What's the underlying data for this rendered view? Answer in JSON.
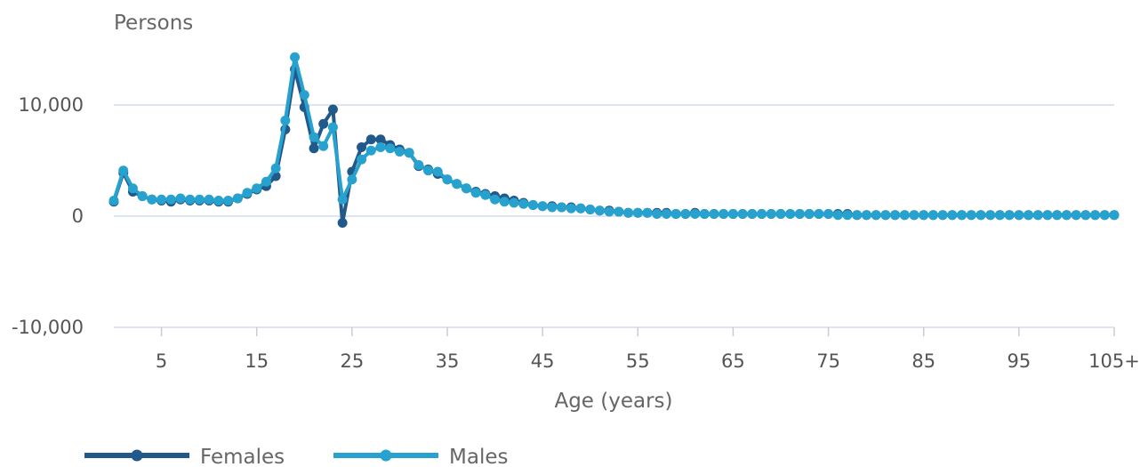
{
  "chart_data": {
    "type": "line",
    "ylabel": "Persons",
    "xlabel": "Age (years)",
    "ylim": [
      -10000,
      15000
    ],
    "yticks": [
      {
        "value": 10000,
        "label": "10,000"
      },
      {
        "value": 0,
        "label": "0"
      },
      {
        "value": -10000,
        "label": "-10,000"
      }
    ],
    "xticks": [
      {
        "value": 5,
        "label": "5"
      },
      {
        "value": 15,
        "label": "15"
      },
      {
        "value": 25,
        "label": "25"
      },
      {
        "value": 35,
        "label": "35"
      },
      {
        "value": 45,
        "label": "45"
      },
      {
        "value": 55,
        "label": "55"
      },
      {
        "value": 65,
        "label": "65"
      },
      {
        "value": 75,
        "label": "75"
      },
      {
        "value": 85,
        "label": "85"
      },
      {
        "value": 95,
        "label": "95"
      },
      {
        "value": 105,
        "label": "105+"
      }
    ],
    "grid": true,
    "legend_position": "bottom-left",
    "x": [
      0,
      1,
      2,
      3,
      4,
      5,
      6,
      7,
      8,
      9,
      10,
      11,
      12,
      13,
      14,
      15,
      16,
      17,
      18,
      19,
      20,
      21,
      22,
      23,
      24,
      25,
      26,
      27,
      28,
      29,
      30,
      31,
      32,
      33,
      34,
      35,
      36,
      37,
      38,
      39,
      40,
      41,
      42,
      43,
      44,
      45,
      46,
      47,
      48,
      49,
      50,
      51,
      52,
      53,
      54,
      55,
      56,
      57,
      58,
      59,
      60,
      61,
      62,
      63,
      64,
      65,
      66,
      67,
      68,
      69,
      70,
      71,
      72,
      73,
      74,
      75,
      76,
      77,
      78,
      79,
      80,
      81,
      82,
      83,
      84,
      85,
      86,
      87,
      88,
      89,
      90,
      91,
      92,
      93,
      94,
      95,
      96,
      97,
      98,
      99,
      100,
      101,
      102,
      103,
      104,
      105
    ],
    "series": [
      {
        "name": "Females",
        "color": "#22598b",
        "values": [
          1300,
          3900,
          2200,
          1800,
          1500,
          1400,
          1300,
          1500,
          1400,
          1400,
          1400,
          1300,
          1300,
          1600,
          2000,
          2400,
          2700,
          3600,
          7800,
          13200,
          9800,
          6100,
          8300,
          9600,
          -600,
          4000,
          6200,
          6900,
          6900,
          6400,
          6000,
          5700,
          4500,
          4200,
          3800,
          3300,
          2900,
          2500,
          2200,
          2000,
          1800,
          1600,
          1400,
          1200,
          1000,
          900,
          900,
          800,
          800,
          700,
          600,
          500,
          500,
          400,
          300,
          300,
          300,
          300,
          300,
          200,
          200,
          300,
          200,
          200,
          200,
          200,
          200,
          200,
          200,
          200,
          200,
          200,
          200,
          200,
          200,
          200,
          200,
          200,
          100,
          100,
          100,
          100,
          100,
          100,
          100,
          100,
          100,
          100,
          100,
          100,
          100,
          100,
          100,
          100,
          100,
          100,
          100,
          100,
          100,
          100,
          100,
          100,
          100,
          100,
          100,
          100
        ]
      },
      {
        "name": "Males",
        "color": "#27a1ce",
        "values": [
          1400,
          4100,
          2500,
          1800,
          1500,
          1500,
          1500,
          1600,
          1500,
          1500,
          1500,
          1400,
          1400,
          1600,
          2100,
          2500,
          3100,
          4300,
          8600,
          14300,
          10900,
          7100,
          6300,
          8000,
          1500,
          3300,
          5100,
          5900,
          6200,
          6100,
          5800,
          5700,
          4600,
          4100,
          4000,
          3300,
          2900,
          2500,
          2100,
          1900,
          1500,
          1300,
          1200,
          1100,
          1000,
          900,
          800,
          800,
          700,
          700,
          600,
          500,
          400,
          400,
          300,
          300,
          300,
          200,
          200,
          200,
          200,
          200,
          200,
          200,
          200,
          200,
          200,
          200,
          200,
          200,
          200,
          200,
          200,
          200,
          200,
          200,
          100,
          100,
          100,
          100,
          100,
          100,
          100,
          100,
          100,
          100,
          100,
          100,
          100,
          100,
          100,
          100,
          100,
          100,
          100,
          100,
          100,
          100,
          100,
          100,
          100,
          100,
          100,
          100,
          100,
          100
        ]
      }
    ]
  }
}
